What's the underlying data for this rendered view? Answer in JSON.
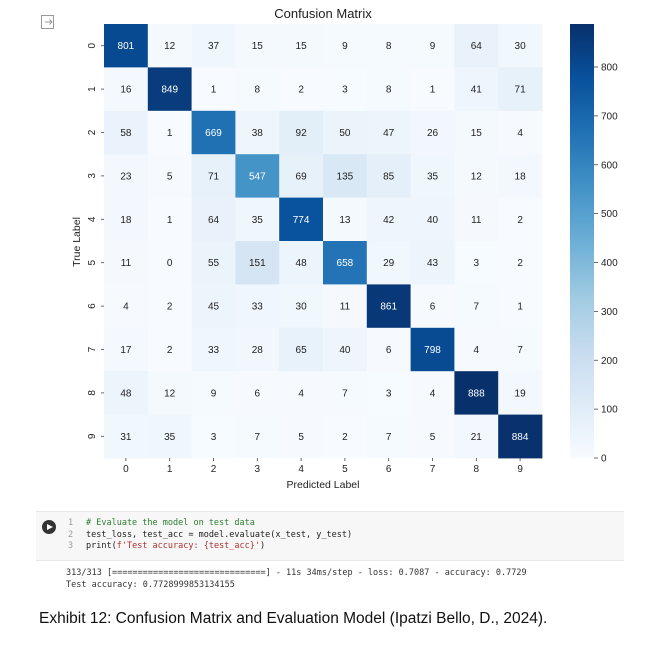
{
  "chart_data": {
    "type": "heatmap",
    "title": "Confusion Matrix",
    "xlabel": "Predicted Label",
    "ylabel": "True Label",
    "x_categories": [
      "0",
      "1",
      "2",
      "3",
      "4",
      "5",
      "6",
      "7",
      "8",
      "9"
    ],
    "y_categories": [
      "0",
      "1",
      "2",
      "3",
      "4",
      "5",
      "6",
      "7",
      "8",
      "9"
    ],
    "values": [
      [
        801,
        12,
        37,
        15,
        15,
        9,
        8,
        9,
        64,
        30
      ],
      [
        16,
        849,
        1,
        8,
        2,
        3,
        8,
        1,
        41,
        71
      ],
      [
        58,
        1,
        669,
        38,
        92,
        50,
        47,
        26,
        15,
        4
      ],
      [
        23,
        5,
        71,
        547,
        69,
        135,
        85,
        35,
        12,
        18
      ],
      [
        18,
        1,
        64,
        35,
        774,
        13,
        42,
        40,
        11,
        2
      ],
      [
        11,
        0,
        55,
        151,
        48,
        658,
        29,
        43,
        3,
        2
      ],
      [
        4,
        2,
        45,
        33,
        30,
        11,
        861,
        6,
        7,
        1
      ],
      [
        17,
        2,
        33,
        28,
        65,
        40,
        6,
        798,
        4,
        7
      ],
      [
        48,
        12,
        9,
        6,
        4,
        7,
        3,
        4,
        888,
        19
      ],
      [
        31,
        35,
        3,
        7,
        5,
        2,
        7,
        5,
        21,
        884
      ]
    ],
    "colorbar": {
      "range": [
        0,
        888
      ],
      "ticks": [
        0,
        100,
        200,
        300,
        400,
        500,
        600,
        700,
        800
      ]
    },
    "colormap": "Blues"
  },
  "code_cell": {
    "lines": [
      {
        "num": "1",
        "parts": [
          {
            "cls": "c-comment",
            "text": "# Evaluate the model on test data"
          }
        ]
      },
      {
        "num": "2",
        "parts": [
          {
            "cls": "",
            "text": "test_loss, test_acc = model.evaluate(x_test, y_test)"
          }
        ]
      },
      {
        "num": "3",
        "parts": [
          {
            "cls": "",
            "text": "print("
          },
          {
            "cls": "c-str",
            "text": "f'Test accuracy: {test_acc}'"
          },
          {
            "cls": "",
            "text": ")"
          }
        ]
      }
    ]
  },
  "output": {
    "line1": "313/313 [==============================] - 11s 34ms/step - loss: 0.7087 - accuracy: 0.7729",
    "line2": "Test accuracy: 0.7728999853134155"
  },
  "caption": "Exhibit 12: Confusion Matrix and Evaluation Model (Ipatzi Bello, D., 2024)."
}
